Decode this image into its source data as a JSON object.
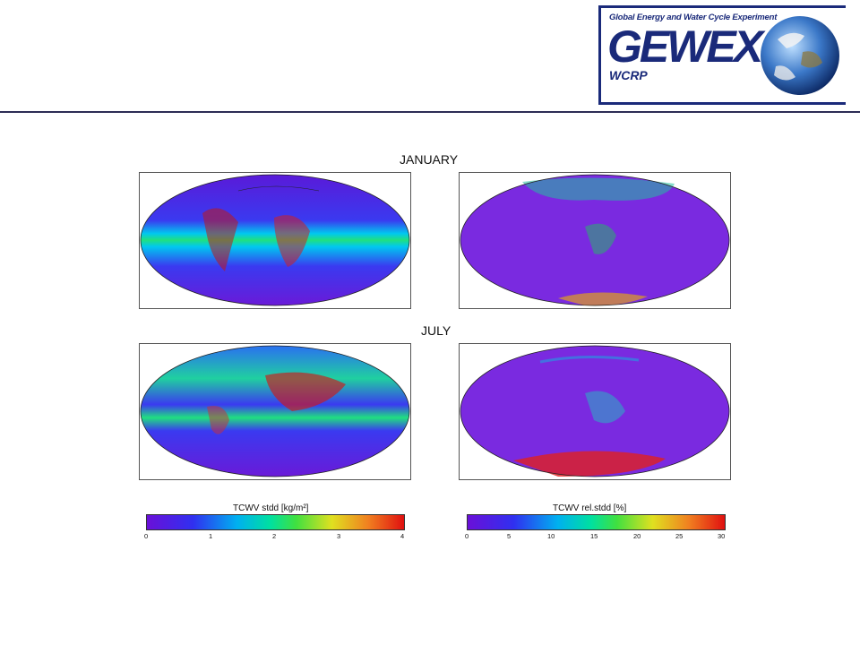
{
  "logo": {
    "tagline": "Global Energy and Water Cycle Experiment",
    "wordmark": "GEWEX",
    "sub": "WCRP"
  },
  "labels": {
    "january": "JANUARY",
    "july": "JULY"
  },
  "maps": [
    {
      "name": "january-stddev",
      "month": "JANUARY",
      "field": "TCWV stdd"
    },
    {
      "name": "january-relstddev",
      "month": "JANUARY",
      "field": "TCWV rel.stdd"
    },
    {
      "name": "july-stddev",
      "month": "JULY",
      "field": "TCWV stdd"
    },
    {
      "name": "july-relstddev",
      "month": "JULY",
      "field": "TCWV rel.stdd"
    }
  ],
  "colorbars": [
    {
      "title": "TCWV stdd [kg/m²]",
      "ticks": [
        "0",
        "1",
        "2",
        "3",
        "4"
      ]
    },
    {
      "title": "TCWV rel.stdd [%]",
      "ticks": [
        "0",
        "5",
        "10",
        "15",
        "20",
        "25",
        "30"
      ]
    }
  ],
  "colors": {
    "rule": "#2d2d55",
    "brand": "#1a2a7a",
    "ocean": "#7a2ae0",
    "high": "#e02020"
  }
}
